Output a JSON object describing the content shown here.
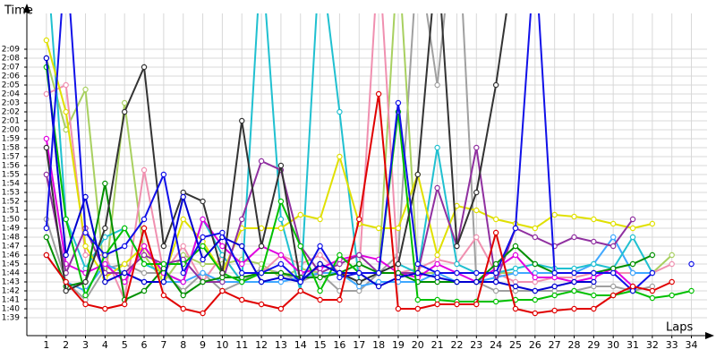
{
  "chart_data": {
    "type": "line",
    "y_label": "Time",
    "x_label": "Laps",
    "grid": true,
    "xlim": [
      0,
      34.8
    ],
    "ylim": [
      97,
      133
    ],
    "x": [
      1,
      2,
      3,
      4,
      5,
      6,
      7,
      8,
      9,
      10,
      11,
      12,
      13,
      14,
      15,
      16,
      17,
      18,
      19,
      20,
      21,
      22,
      23,
      24,
      25,
      26,
      27,
      28,
      29,
      30,
      31,
      32,
      33,
      34
    ],
    "xticks": [
      1,
      2,
      3,
      4,
      5,
      6,
      7,
      8,
      9,
      10,
      11,
      12,
      13,
      14,
      15,
      16,
      17,
      18,
      19,
      20,
      21,
      22,
      23,
      24,
      25,
      26,
      27,
      28,
      29,
      30,
      31,
      32,
      33,
      34
    ],
    "yticks": [
      {
        "value": 99,
        "label": "1:39"
      },
      {
        "value": 100,
        "label": "1:40"
      },
      {
        "value": 101,
        "label": "1:41"
      },
      {
        "value": 102,
        "label": "1:42"
      },
      {
        "value": 103,
        "label": "1:43"
      },
      {
        "value": 104,
        "label": "1:44"
      },
      {
        "value": 105,
        "label": "1:45"
      },
      {
        "value": 106,
        "label": "1:46"
      },
      {
        "value": 107,
        "label": "1:47"
      },
      {
        "value": 108,
        "label": "1:48"
      },
      {
        "value": 109,
        "label": "1:49"
      },
      {
        "value": 110,
        "label": "1:50"
      },
      {
        "value": 111,
        "label": "1:51"
      },
      {
        "value": 112,
        "label": "1:52"
      },
      {
        "value": 113,
        "label": "1:53"
      },
      {
        "value": 114,
        "label": "1:54"
      },
      {
        "value": 115,
        "label": "1:55"
      },
      {
        "value": 116,
        "label": "1:56"
      },
      {
        "value": 117,
        "label": "1:57"
      },
      {
        "value": 118,
        "label": "1:58"
      },
      {
        "value": 119,
        "label": "1:59"
      },
      {
        "value": 120,
        "label": "2:00"
      },
      {
        "value": 121,
        "label": "2:01"
      },
      {
        "value": 122,
        "label": "2:02"
      },
      {
        "value": 123,
        "label": "2:03"
      },
      {
        "value": 124,
        "label": "2:04"
      },
      {
        "value": 125,
        "label": "2:05"
      },
      {
        "value": 126,
        "label": "2:06"
      },
      {
        "value": 127,
        "label": "2:07"
      },
      {
        "value": 128,
        "label": "2:08"
      },
      {
        "value": 129,
        "label": "2:09"
      }
    ],
    "series": [
      {
        "color": "#a0a0a0",
        "values": [
          110,
          103,
          101,
          104.5,
          105,
          104,
          104,
          102,
          104,
          102,
          103,
          104.5,
          104,
          103,
          104,
          102,
          102,
          104,
          106,
          140,
          125,
          146,
          103,
          102,
          102,
          102,
          102,
          102,
          102.5,
          102.5,
          102,
          102.5,
          null,
          null
        ]
      },
      {
        "color": "#a8d060",
        "values": [
          128,
          120,
          124.5,
          103,
          123,
          106,
          103,
          106,
          105,
          105,
          105.5,
          105,
          103.5,
          104.5,
          104,
          104,
          103,
          104,
          140,
          104,
          104,
          104,
          104,
          104,
          104,
          104,
          104,
          104,
          104,
          104,
          104,
          104,
          106,
          null
        ]
      },
      {
        "color": "#f090b0",
        "values": [
          124,
          125,
          106,
          106,
          101,
          115.5,
          104,
          107,
          103,
          106,
          103,
          104,
          106,
          105,
          106,
          104,
          104,
          140,
          104,
          104.5,
          105.5,
          105,
          108,
          104,
          103,
          103,
          103.5,
          103.5,
          104,
          104,
          104,
          104,
          105,
          null
        ]
      },
      {
        "color": "#40a8ff",
        "values": [
          106,
          103,
          102,
          105,
          104,
          103,
          103,
          103,
          104,
          103,
          103,
          103,
          103,
          103.5,
          104,
          104,
          102.5,
          103,
          103,
          103,
          104,
          103,
          103,
          103.5,
          104,
          104,
          104,
          104,
          105,
          108,
          104,
          104,
          null,
          null
        ]
      },
      {
        "color": "#20c0d0",
        "values": [
          140,
          110,
          104.5,
          108,
          109,
          105,
          104,
          103,
          110,
          106,
          103,
          140,
          110,
          102,
          140,
          122,
          103,
          104,
          105,
          104,
          118,
          105,
          104,
          104,
          104.5,
          105,
          104.5,
          104.5,
          105,
          104.5,
          108,
          104,
          null,
          null
        ]
      },
      {
        "color": "#e0e000",
        "values": [
          130,
          122,
          107,
          103.5,
          105,
          107,
          103.5,
          110,
          107.5,
          104,
          109,
          109,
          109,
          110.5,
          110,
          117,
          109.5,
          109,
          109,
          115,
          106,
          111.5,
          111,
          110,
          109.5,
          109,
          110.5,
          110.3,
          110,
          109.5,
          109,
          109.5,
          null,
          null
        ]
      },
      {
        "color": "#e000e0",
        "values": [
          119,
          105,
          104,
          105,
          103,
          107,
          104,
          103,
          110,
          107,
          105,
          107,
          106,
          104,
          104.5,
          105.5,
          106,
          105.5,
          104,
          103.5,
          105,
          104,
          103,
          104.5,
          106,
          103.5,
          103.5,
          103,
          103.5,
          104.5,
          102.5,
          null,
          null,
          null
        ]
      },
      {
        "color": "#9030a0",
        "values": [
          115,
          104,
          109,
          104,
          104,
          106,
          105,
          105.5,
          103,
          103,
          110,
          116.5,
          115.5,
          107,
          104,
          105,
          106,
          104,
          104,
          104,
          113.5,
          107,
          118,
          103,
          109,
          108,
          107,
          108,
          107.5,
          107,
          110,
          null,
          null,
          null
        ]
      },
      {
        "color": "#009000",
        "values": [
          108,
          102.5,
          103,
          114,
          101,
          102,
          104.5,
          101.5,
          103,
          103.5,
          103.5,
          104,
          104,
          103.5,
          103.5,
          104,
          105,
          104,
          104,
          103,
          103,
          103,
          103,
          105,
          107,
          105,
          104,
          104,
          104,
          104.5,
          105,
          106,
          null,
          null
        ]
      },
      {
        "color": "#00c000",
        "values": [
          127,
          110,
          101.5,
          106,
          109,
          105,
          105,
          105,
          107,
          104,
          103,
          104,
          112,
          107,
          102,
          106,
          104,
          104,
          122,
          101,
          101,
          100.8,
          100.8,
          100.8,
          101,
          101,
          101.5,
          102,
          101.5,
          101.5,
          102,
          101.2,
          101.5,
          102
        ]
      },
      {
        "color": "#333333",
        "values": [
          118,
          102,
          103,
          109,
          122,
          127,
          107,
          113,
          112,
          104,
          121,
          107,
          116,
          103,
          105,
          104,
          103,
          104,
          105,
          115,
          140,
          107,
          113,
          125,
          140,
          null,
          null,
          null,
          null,
          null,
          null,
          null,
          null,
          null
        ]
      },
      {
        "color": "#0000d0",
        "values": [
          128,
          106,
          112.5,
          103,
          104,
          103,
          103,
          112.5,
          105.5,
          108,
          107,
          103,
          103.5,
          103,
          105,
          104,
          104,
          102.5,
          103.5,
          104,
          103.5,
          103,
          103,
          103,
          102.5,
          102,
          102.5,
          103,
          103,
          null,
          null,
          null,
          null,
          null
        ]
      },
      {
        "color": "#1010e8",
        "values": [
          109,
          140,
          108.5,
          106,
          107,
          110,
          115,
          104,
          108,
          108.5,
          104,
          104,
          105,
          103,
          107,
          103.5,
          104,
          104,
          123,
          105,
          104,
          104,
          104,
          104,
          109,
          140,
          104,
          104,
          104,
          104,
          102,
          104,
          null,
          105
        ]
      },
      {
        "color": "#e00000",
        "values": [
          106,
          103,
          100.5,
          100,
          100.5,
          109,
          101.5,
          100,
          99.5,
          102,
          101,
          100.5,
          100,
          102,
          101,
          101,
          110,
          124,
          100,
          100,
          100.5,
          100.5,
          100.5,
          108.5,
          100,
          99.5,
          99.8,
          100,
          100,
          101.5,
          102.5,
          102,
          103,
          null
        ]
      }
    ]
  }
}
